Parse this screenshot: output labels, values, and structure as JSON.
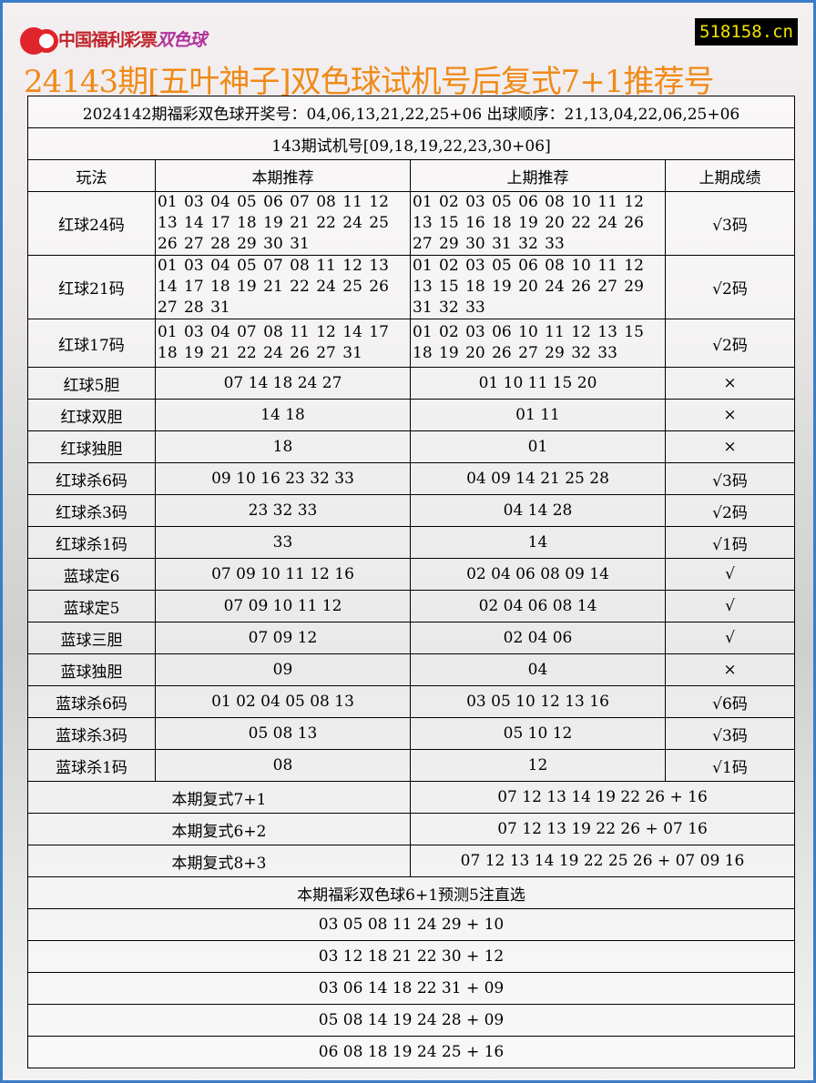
{
  "header": {
    "logo_text": "中国福利彩票",
    "logo_brand": "双色球",
    "site": "518158.cn",
    "title": "24143期[五叶神子]双色球试机号后复式7+1推荐号"
  },
  "draw_info": "2024142期福彩双色球开奖号：04,06,13,21,22,25+06 出球顺序：21,13,04,22,06,25+06",
  "trial_numbers": "143期试机号[09,18,19,22,23,30+06]",
  "columns": [
    "玩法",
    "本期推荐",
    "上期推荐",
    "上期成绩"
  ],
  "rows": [
    {
      "play": "红球24码",
      "current": "01 03 04 05 06 07 08 11 12\n13 14 17 18 19 21 22 24 25\n26 27 28 29 30 31",
      "previous": "01 02 03 05 06 08 10 11 12\n13 15 16 18 19 20 22 24 26\n27 29 30 31 32 33",
      "result": "√3码",
      "multi": true,
      "h": 70
    },
    {
      "play": "红球21码",
      "current": "01 03 04 05 07 08 11 12 13\n14 17 18 19 21 22 24 25 26\n27 28 31",
      "previous": "01 02 03 05 06 08 10 11 12\n13 15 18 19 20 24 26 27 29\n31 32 33",
      "result": "√2码",
      "multi": true,
      "h": 70
    },
    {
      "play": "红球17码",
      "current": "01 03 04 07 08 11 12 14 17\n18 19 21 22 24 26 27 31",
      "previous": "01 02 03 06 10 11 12 13 15\n18 19 20 26 27 29 32 33",
      "result": "√2码",
      "multi": true,
      "h": 53
    },
    {
      "play": "红球5胆",
      "current": "07 14 18 24 27",
      "previous": "01 10 11 15 20",
      "result": "×"
    },
    {
      "play": "红球双胆",
      "current": "14 18",
      "previous": "01 11",
      "result": "×"
    },
    {
      "play": "红球独胆",
      "current": "18",
      "previous": "01",
      "result": "×"
    },
    {
      "play": "红球杀6码",
      "current": "09 10 16 23 32 33",
      "previous": "04 09 14 21 25 28",
      "result": "√3码"
    },
    {
      "play": "红球杀3码",
      "current": "23 32 33",
      "previous": "04 14 28",
      "result": "√2码"
    },
    {
      "play": "红球杀1码",
      "current": "33",
      "previous": "14",
      "result": "√1码"
    },
    {
      "play": "蓝球定6",
      "current": "07 09 10 11 12 16",
      "previous": "02 04 06 08 09 14",
      "result": "√"
    },
    {
      "play": "蓝球定5",
      "current": "07 09 10 11 12",
      "previous": "02 04 06 08 14",
      "result": "√"
    },
    {
      "play": "蓝球三胆",
      "current": "07 09 12",
      "previous": "02 04 06",
      "result": "√"
    },
    {
      "play": "蓝球独胆",
      "current": "09",
      "previous": "04",
      "result": "×"
    },
    {
      "play": "蓝球杀6码",
      "current": "01 02 04 05 08 13",
      "previous": "03 05 10 12 13 16",
      "result": "√6码"
    },
    {
      "play": "蓝球杀3码",
      "current": "05 08 13",
      "previous": "05 10 12",
      "result": "√3码"
    },
    {
      "play": "蓝球杀1码",
      "current": "08",
      "previous": "12",
      "result": "√1码"
    }
  ],
  "compound": [
    {
      "label": "本期复式7+1",
      "value": "07 12 13 14 19 22 26 + 16"
    },
    {
      "label": "本期复式6+2",
      "value": "07 12 13 19 22 26 + 07 16"
    },
    {
      "label": "本期复式8+3",
      "value": "07 12 13 14 19 22 25 26 + 07 09 16"
    }
  ],
  "picks_title": "本期福彩双色球6+1预测5注直选",
  "picks": [
    "03 05 08 11 24 29 + 10",
    "03 12 18 21 22 30 + 12",
    "03 06 14 18 22 31 + 09",
    "05 08 14 19 24 28 + 09",
    "06 08 18 19 24 25 + 16"
  ]
}
